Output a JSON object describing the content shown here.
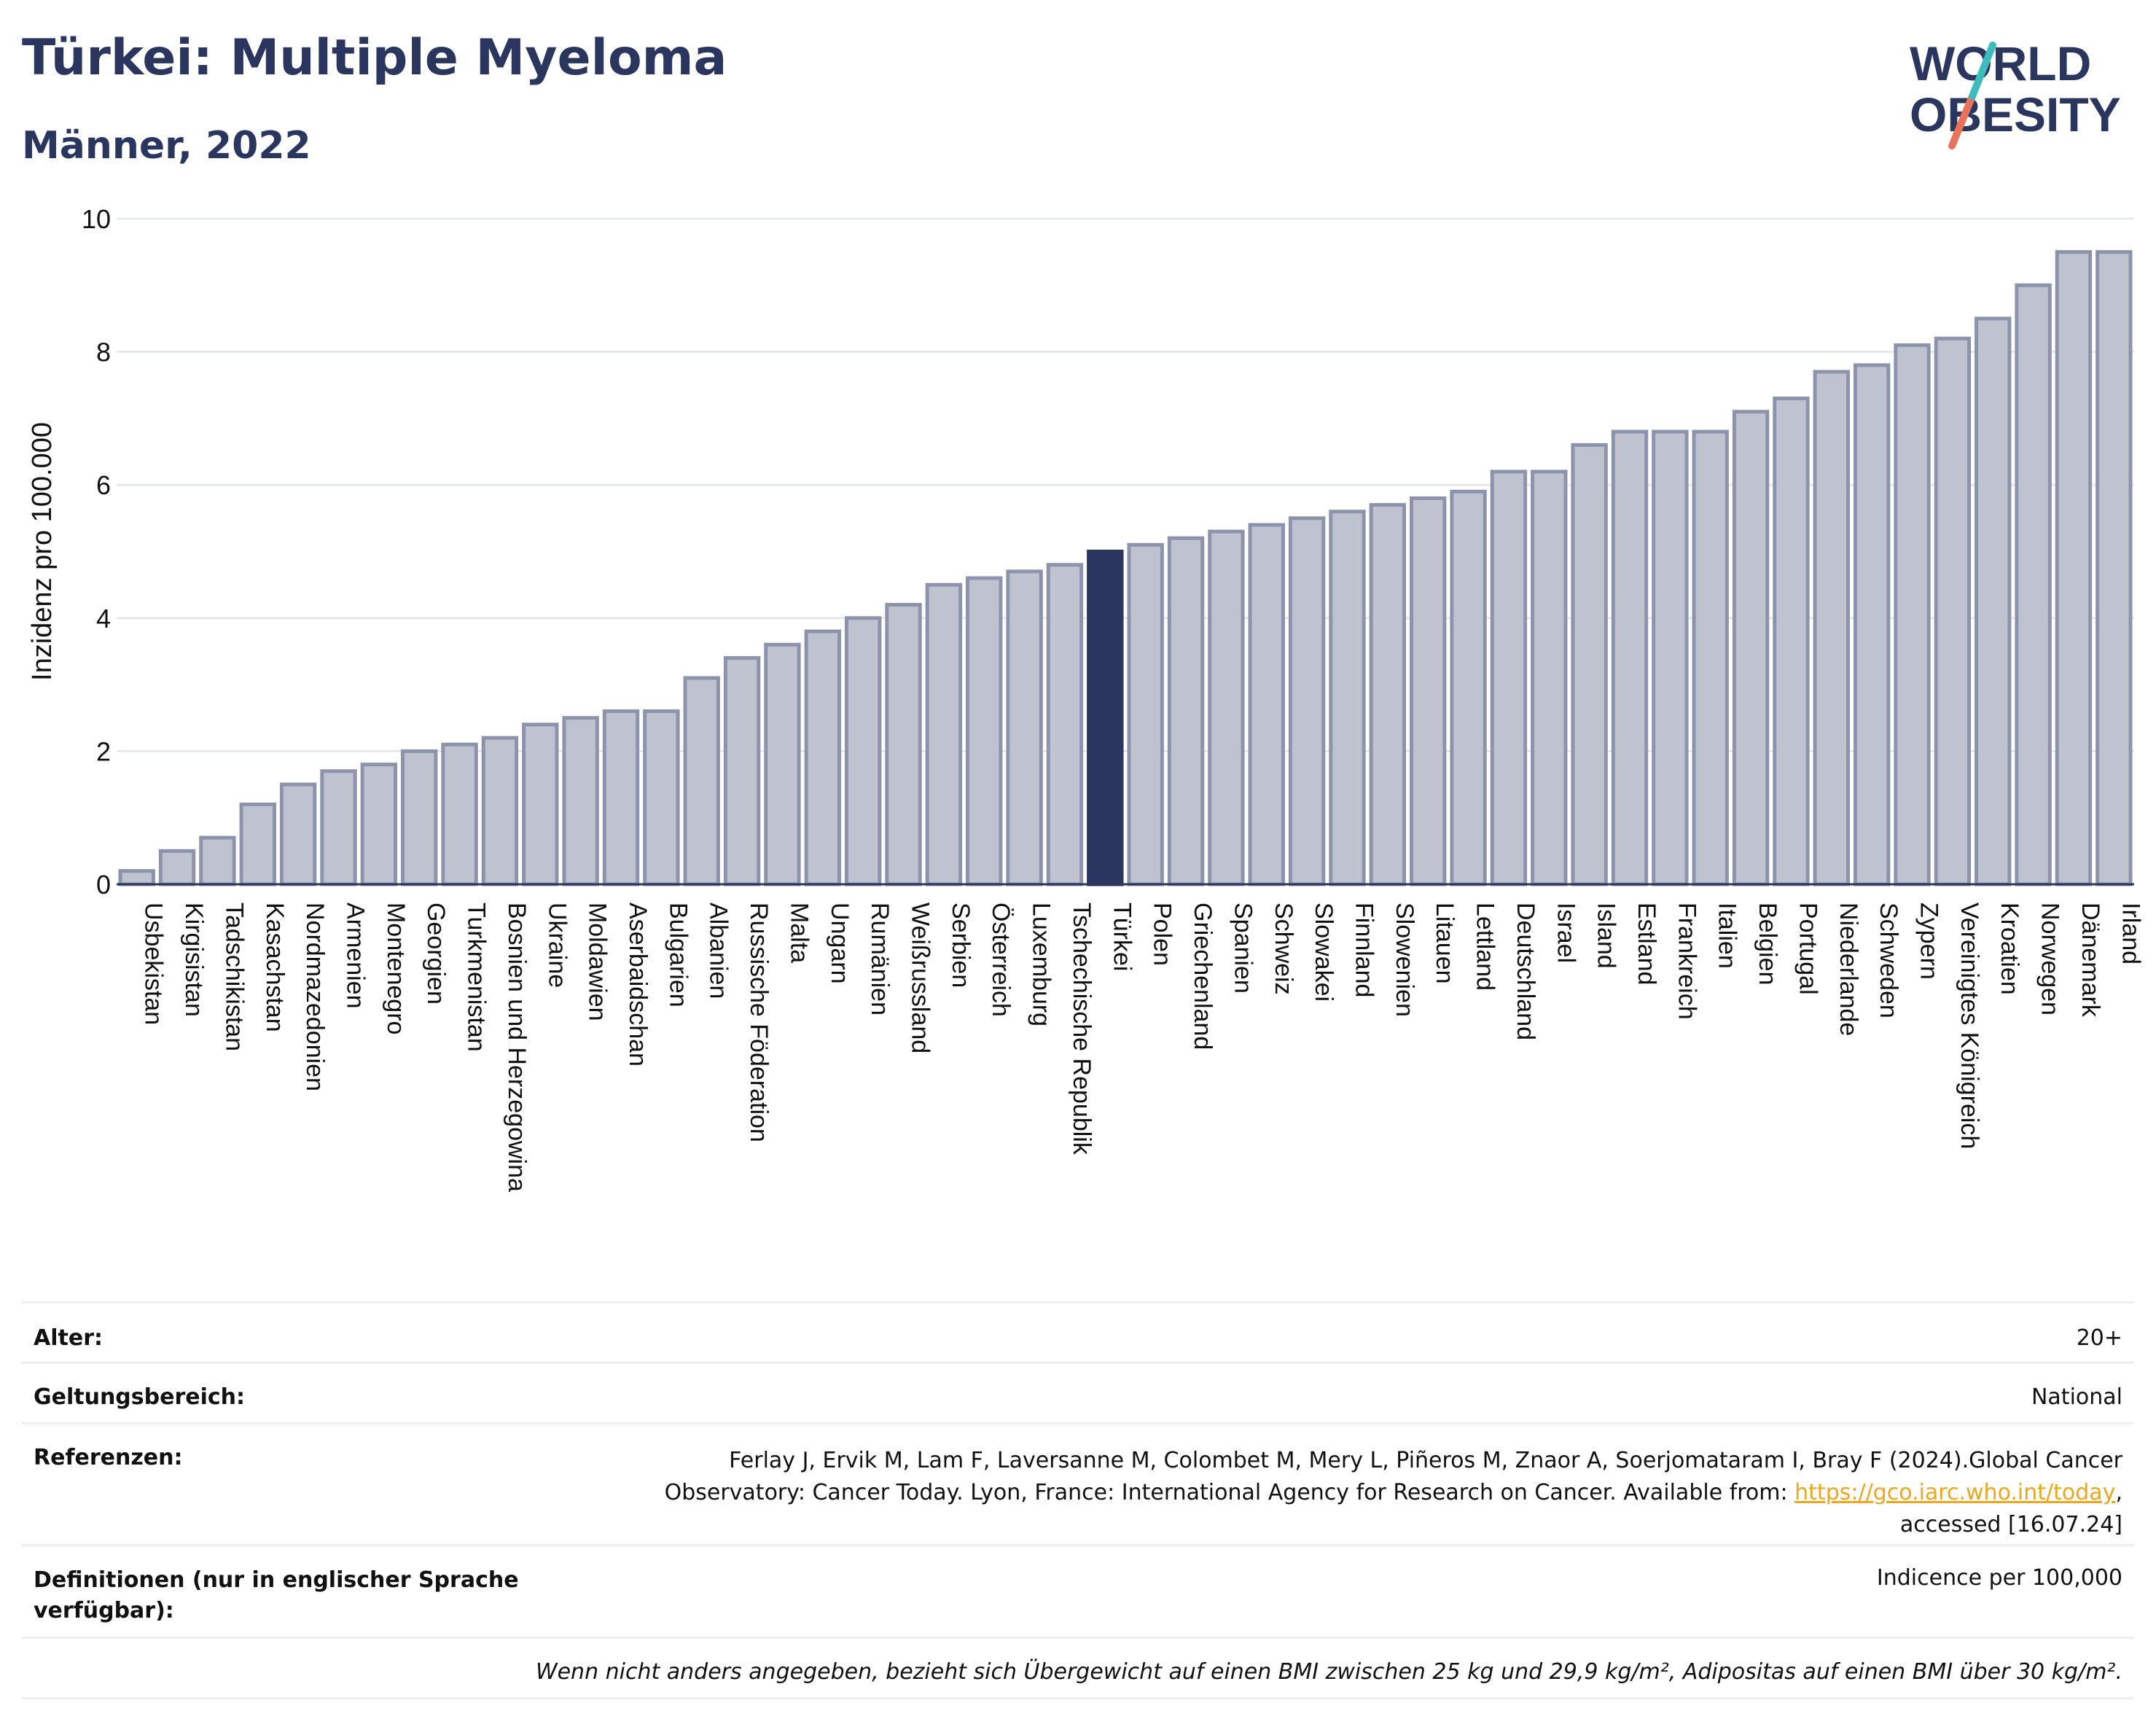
{
  "header": {
    "title": "Türkei: Multiple Myeloma",
    "subtitle": "Männer, 2022"
  },
  "logo": {
    "line1": "WORLD",
    "line2": "OBESITY"
  },
  "colors": {
    "bar": "#bfc3d0",
    "bar_border": "#8e93ac",
    "highlight": "#2b365e",
    "text": "#2b365e",
    "logo_teal": "#3cbdbb",
    "logo_coral": "#e8735a"
  },
  "chart_data": {
    "type": "bar",
    "ylabel": "Inzidenz pro 100.000",
    "ylim": [
      0,
      10
    ],
    "yticks": [
      0,
      2,
      4,
      6,
      8,
      10
    ],
    "highlight": "Türkei",
    "grid": true,
    "categories": [
      "Usbekistan",
      "Kirgisistan",
      "Tadschikistan",
      "Kasachstan",
      "Nordmazedonien",
      "Armenien",
      "Montenegro",
      "Georgien",
      "Turkmenistan",
      "Bosnien und Herzegowina",
      "Ukraine",
      "Moldawien",
      "Aserbaidschan",
      "Bulgarien",
      "Albanien",
      "Russische Föderation",
      "Malta",
      "Ungarn",
      "Rumänien",
      "Weißrussland",
      "Serbien",
      "Österreich",
      "Luxemburg",
      "Tschechische Republik",
      "Türkei",
      "Polen",
      "Griechenland",
      "Spanien",
      "Schweiz",
      "Slowakei",
      "Finnland",
      "Slowenien",
      "Litauen",
      "Lettland",
      "Deutschland",
      "Israel",
      "Island",
      "Estland",
      "Frankreich",
      "Italien",
      "Belgien",
      "Portugal",
      "Niederlande",
      "Schweden",
      "Zypern",
      "Vereinigtes Königreich",
      "Kroatien",
      "Norwegen",
      "Dänemark",
      "Irland"
    ],
    "values": [
      0.2,
      0.5,
      0.7,
      1.2,
      1.5,
      1.7,
      1.8,
      2.0,
      2.1,
      2.2,
      2.4,
      2.5,
      2.6,
      2.6,
      3.1,
      3.4,
      3.6,
      3.8,
      4.0,
      4.2,
      4.5,
      4.6,
      4.7,
      4.8,
      5.0,
      5.1,
      5.2,
      5.3,
      5.4,
      5.5,
      5.6,
      5.7,
      5.8,
      5.9,
      6.2,
      6.2,
      6.6,
      6.8,
      6.8,
      6.8,
      7.1,
      7.3,
      7.7,
      7.8,
      8.1,
      8.2,
      8.5,
      9.0,
      9.5,
      9.5
    ]
  },
  "meta": {
    "age_label": "Alter:",
    "age_value": "20+",
    "scope_label": "Geltungsbereich:",
    "scope_value": "National",
    "ref_label": "Referenzen:",
    "ref_line1": "Ferlay J, Ervik M, Lam F, Laversanne M, Colombet M, Mery L, Piñeros M, Znaor A, Soerjomataram I, Bray F (2024).Global Cancer",
    "ref_line2": "Observatory: Cancer Today. Lyon, France: International Agency for Research on Cancer. Available from:",
    "ref_link": "https://gco.iarc.who.int/today",
    "ref_line2_end": ",",
    "ref_line3": "accessed [16.07.24]",
    "def_label_1": "Definitionen (nur in englischer Sprache",
    "def_label_2": "verfügbar):",
    "def_value": "Indicence per 100,000",
    "note": "Wenn nicht anders angegeben, bezieht sich Übergewicht auf einen BMI zwischen 25 kg und 29,9 kg/m², Adipositas auf einen BMI über 30 kg/m²."
  }
}
